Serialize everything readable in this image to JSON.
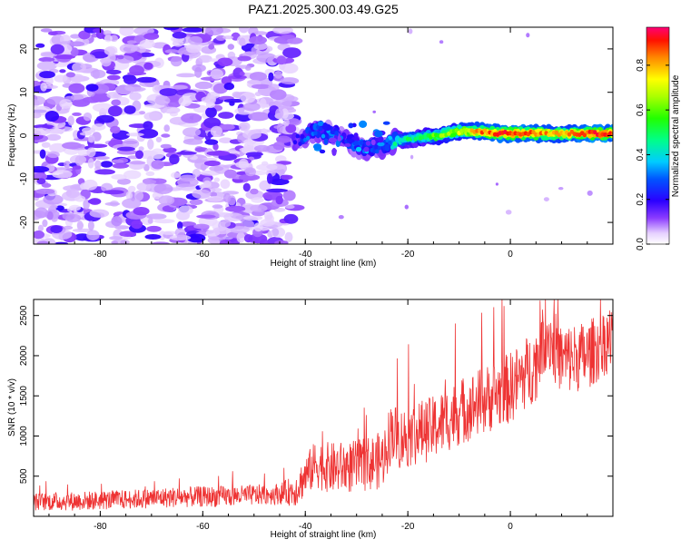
{
  "title": "PAZ1.2025.300.03.49.G25",
  "chart_data": [
    {
      "type": "heatmap",
      "name": "spectrogram",
      "xlabel": "Height of straight line (km)",
      "ylabel": "Frequency (Hz)",
      "xlim": [
        -93,
        20
      ],
      "ylim": [
        -25,
        25
      ],
      "xticks": [
        -80,
        -60,
        -40,
        -20,
        0
      ],
      "yticks": [
        -20,
        -10,
        0,
        10,
        20
      ],
      "noise_region_km": [
        -93,
        -42
      ],
      "signal_trace": {
        "x": [
          -42,
          -38,
          -35,
          -32,
          -30,
          -28,
          -25,
          -22,
          -18,
          -14,
          -10,
          -6,
          -2,
          2,
          6,
          10,
          14,
          18,
          20
        ],
        "freq": [
          -1.5,
          1.5,
          0.5,
          -0.5,
          -2.5,
          -3,
          -2.5,
          -1,
          -0.5,
          0,
          1,
          1,
          0.5,
          0.5,
          0.5,
          0.5,
          0.5,
          0.5,
          0.5
        ],
        "amplitude": [
          0.2,
          0.3,
          0.28,
          0.25,
          0.3,
          0.35,
          0.3,
          0.45,
          0.5,
          0.6,
          0.7,
          0.85,
          0.9,
          0.9,
          0.85,
          0.8,
          0.9,
          0.95,
          0.9
        ]
      },
      "colorbar": {
        "label": "Normalized spectral amplitude",
        "range": [
          0,
          0.97
        ],
        "ticks": [
          "0.0",
          "0.2",
          "0.4",
          "0.6",
          "0.8"
        ],
        "tick_values": [
          0,
          0.2,
          0.4,
          0.6,
          0.8
        ]
      }
    },
    {
      "type": "line",
      "name": "snr",
      "xlabel": "Height of straight line (km)",
      "ylabel": "SNR (10 * v/v)",
      "xlim": [
        -93,
        20
      ],
      "ylim": [
        0,
        2700
      ],
      "xticks": [
        -80,
        -60,
        -40,
        -20,
        0
      ],
      "yticks": [
        500,
        1000,
        1500,
        2000,
        2500
      ],
      "color": "#ee3333",
      "series": [
        {
          "name": "SNR",
          "x": [
            -93,
            -85,
            -75,
            -65,
            -55,
            -45,
            -42,
            -40,
            -38,
            -35,
            -30,
            -25,
            -23,
            -22,
            -20,
            -15,
            -10,
            -5,
            0,
            5,
            7,
            10,
            15,
            20
          ],
          "values": [
            180,
            190,
            210,
            240,
            250,
            280,
            320,
            500,
            650,
            600,
            620,
            700,
            1100,
            950,
            1000,
            1100,
            1300,
            1450,
            1600,
            1900,
            2300,
            1950,
            2000,
            2250
          ],
          "noise_amplitude": [
            110,
            120,
            120,
            130,
            130,
            130,
            200,
            260,
            300,
            320,
            330,
            360,
            400,
            380,
            400,
            400,
            420,
            430,
            450,
            460,
            460,
            450,
            430,
            420
          ]
        }
      ]
    }
  ]
}
